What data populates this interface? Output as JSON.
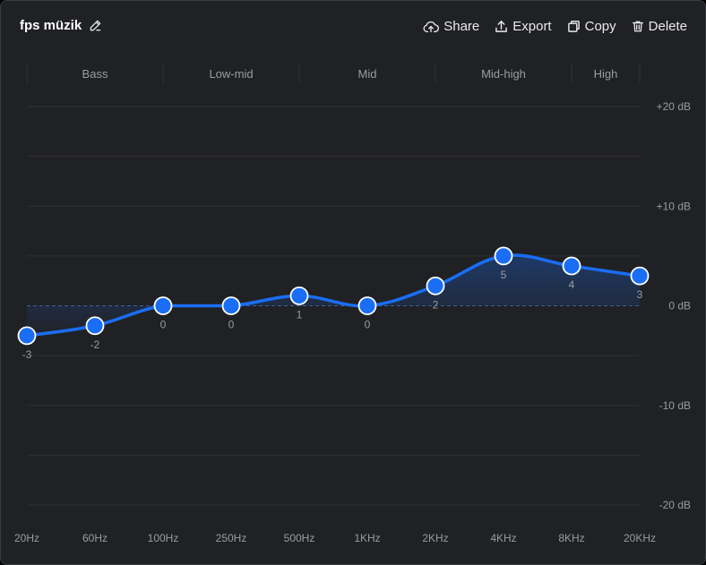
{
  "header": {
    "title": "fps müzik",
    "edit_icon": "pencil-icon"
  },
  "toolbar": {
    "share_label": "Share",
    "export_label": "Export",
    "copy_label": "Copy",
    "delete_label": "Delete",
    "share_icon": "cloud-upload-icon",
    "export_icon": "export-icon",
    "copy_icon": "copy-icon",
    "delete_icon": "trash-icon"
  },
  "colors": {
    "background": "#202124",
    "accent": "#1a6ef5",
    "grid": "#2f3135",
    "text_muted": "#9a9ca0"
  },
  "chart_data": {
    "type": "line",
    "bands": [
      "Bass",
      "Low-mid",
      "Mid",
      "Mid-high",
      "High"
    ],
    "categories": [
      "20Hz",
      "60Hz",
      "100Hz",
      "250Hz",
      "500Hz",
      "1KHz",
      "2KHz",
      "4KHz",
      "8KHz",
      "20KHz"
    ],
    "values": [
      -3,
      -2,
      0,
      0,
      1,
      0,
      2,
      5,
      4,
      3
    ],
    "y_tick_labels": [
      "+20 dB",
      "+10 dB",
      "0 dB",
      "-10 dB",
      "-20 dB"
    ],
    "y_ticks": [
      20,
      10,
      0,
      -10,
      -20
    ],
    "ylim": [
      -20,
      20
    ],
    "grid": true,
    "zero_line": "dashed"
  }
}
